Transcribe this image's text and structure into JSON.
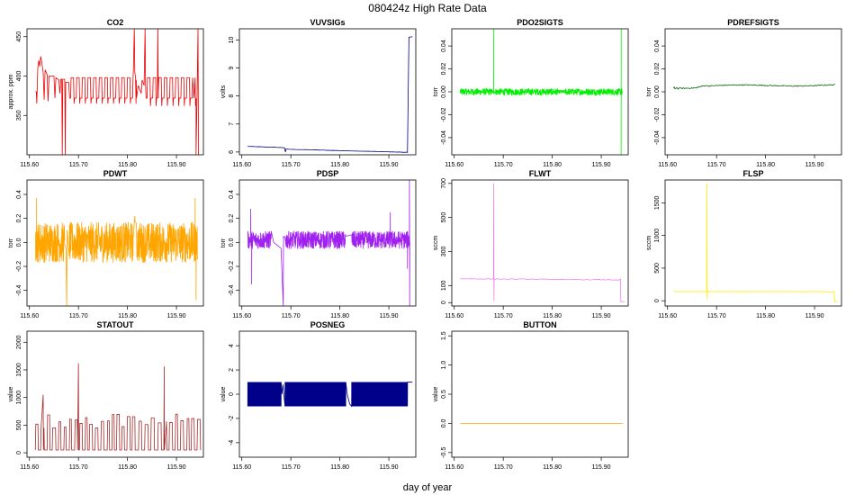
{
  "figure": {
    "title": "080424z   High Rate Data",
    "xlabel": "day of year"
  },
  "chart_data": [
    {
      "title": "CO2",
      "ylabel": "approx. ppm",
      "color": "#ee0000",
      "pattern": "co2",
      "type": "line",
      "xlim": [
        115.595,
        115.955
      ],
      "ylim": [
        300,
        460
      ],
      "yticks": [
        350,
        400,
        450
      ],
      "xticks": [
        115.6,
        115.7,
        115.8,
        115.9
      ],
      "xtick_labels": [
        "115.60",
        "115.70",
        "115.80",
        "115.90"
      ]
    },
    {
      "title": "VUVSIGs",
      "ylabel": "volts",
      "color": "#00008b",
      "pattern": "vuv",
      "type": "line",
      "xlim": [
        115.595,
        115.955
      ],
      "ylim": [
        5.9,
        10.4
      ],
      "yticks": [
        6,
        7,
        8,
        9,
        10
      ],
      "xticks": [
        115.6,
        115.7,
        115.8,
        115.9
      ],
      "xtick_labels": [
        "115.60",
        "115.70",
        "115.80",
        "115.90"
      ]
    },
    {
      "title": "PDO2SIGTS",
      "ylabel": "torr",
      "color": "#00ee00",
      "pattern": "pdo2",
      "type": "line",
      "xlim": [
        115.595,
        115.955
      ],
      "ylim": [
        -0.055,
        0.055
      ],
      "yticks": [
        -0.04,
        -0.02,
        0,
        0.02,
        0.04
      ],
      "ytick_labels": [
        "-0.04",
        "-0.02",
        "0.00",
        "0.02",
        "0.04"
      ],
      "xticks": [
        115.6,
        115.7,
        115.8,
        115.9
      ],
      "xtick_labels": [
        "115.60",
        "115.70",
        "115.80",
        "115.90"
      ]
    },
    {
      "title": "PDREFSIGTS",
      "ylabel": "torr",
      "color": "#006400",
      "pattern": "pdref",
      "type": "line",
      "xlim": [
        115.595,
        115.955
      ],
      "ylim": [
        -0.055,
        0.055
      ],
      "yticks": [
        -0.04,
        -0.02,
        0,
        0.02,
        0.04
      ],
      "ytick_labels": [
        "-0.04",
        "-0.02",
        "0.00",
        "0.02",
        "0.04"
      ],
      "xticks": [
        115.6,
        115.7,
        115.8,
        115.9
      ],
      "xtick_labels": [
        "115.60",
        "115.70",
        "115.80",
        "115.90"
      ]
    },
    {
      "title": "PDWT",
      "ylabel": "torr",
      "color": "#ffa500",
      "pattern": "pdwt",
      "type": "line",
      "xlim": [
        115.595,
        115.955
      ],
      "ylim": [
        -0.53,
        0.52
      ],
      "yticks": [
        -0.4,
        -0.2,
        0,
        0.2,
        0.4
      ],
      "ytick_labels": [
        "-0.4",
        "-0.2",
        "0.0",
        "0.2",
        "0.4"
      ],
      "xticks": [
        115.6,
        115.7,
        115.8,
        115.9
      ],
      "xtick_labels": [
        "115.60",
        "115.70",
        "115.80",
        "115.90"
      ]
    },
    {
      "title": "PDSP",
      "ylabel": "torr",
      "color": "#a020f0",
      "pattern": "pdsp",
      "type": "line",
      "xlim": [
        115.595,
        115.955
      ],
      "ylim": [
        -0.53,
        0.52
      ],
      "yticks": [
        -0.4,
        -0.2,
        0,
        0.2,
        0.4
      ],
      "ytick_labels": [
        "-0.4",
        "-0.2",
        "0.0",
        "0.2",
        "0.4"
      ],
      "xticks": [
        115.6,
        115.7,
        115.8,
        115.9
      ],
      "xtick_labels": [
        "115.60",
        "115.70",
        "115.80",
        "115.90"
      ]
    },
    {
      "title": "FLWT",
      "ylabel": "sccm",
      "color": "#ee82ee",
      "pattern": "flwt",
      "type": "line",
      "xlim": [
        115.595,
        115.955
      ],
      "ylim": [
        -20,
        720
      ],
      "yticks": [
        0,
        100,
        300,
        500,
        700
      ],
      "xticks": [
        115.6,
        115.7,
        115.8,
        115.9
      ],
      "xtick_labels": [
        "115.60",
        "115.70",
        "115.80",
        "115.90"
      ]
    },
    {
      "title": "FLSP",
      "ylabel": "sccm",
      "color": "#ffee00",
      "pattern": "flsp",
      "type": "line",
      "xlim": [
        115.595,
        115.955
      ],
      "ylim": [
        -80,
        1850
      ],
      "yticks": [
        0,
        500,
        1000,
        1500
      ],
      "xticks": [
        115.6,
        115.7,
        115.8,
        115.9
      ],
      "xtick_labels": [
        "115.60",
        "115.70",
        "115.80",
        "115.90"
      ]
    },
    {
      "title": "STATOUT",
      "ylabel": "value",
      "color": "#a52a2a",
      "pattern": "statout",
      "type": "line",
      "xlim": [
        115.595,
        115.955
      ],
      "ylim": [
        -80,
        2200
      ],
      "yticks": [
        0,
        500,
        1000,
        1500,
        2000
      ],
      "xticks": [
        115.6,
        115.7,
        115.8,
        115.9
      ],
      "xtick_labels": [
        "115.60",
        "115.70",
        "115.80",
        "115.90"
      ]
    },
    {
      "title": "POSNEG",
      "ylabel": "value",
      "color": "#00008b",
      "pattern": "posneg",
      "type": "line",
      "xlim": [
        115.595,
        115.955
      ],
      "ylim": [
        -5.2,
        5.2
      ],
      "yticks": [
        -4,
        -2,
        0,
        2,
        4
      ],
      "xticks": [
        115.6,
        115.7,
        115.8,
        115.9
      ],
      "xtick_labels": [
        "115.60",
        "115.70",
        "115.80",
        "115.90"
      ]
    },
    {
      "title": "BUTTON",
      "ylabel": "value",
      "color": "#ffa500",
      "pattern": "button",
      "type": "line",
      "xlim": [
        115.595,
        115.955
      ],
      "ylim": [
        -0.58,
        1.58
      ],
      "yticks": [
        -0.5,
        0,
        0.5,
        1,
        1.5
      ],
      "ytick_labels": [
        "-0.5",
        "0.0",
        "0.5",
        "1.0",
        "1.5"
      ],
      "xticks": [
        115.6,
        115.7,
        115.8,
        115.9
      ],
      "xtick_labels": [
        "115.60",
        "115.70",
        "115.80",
        "115.90"
      ]
    }
  ]
}
